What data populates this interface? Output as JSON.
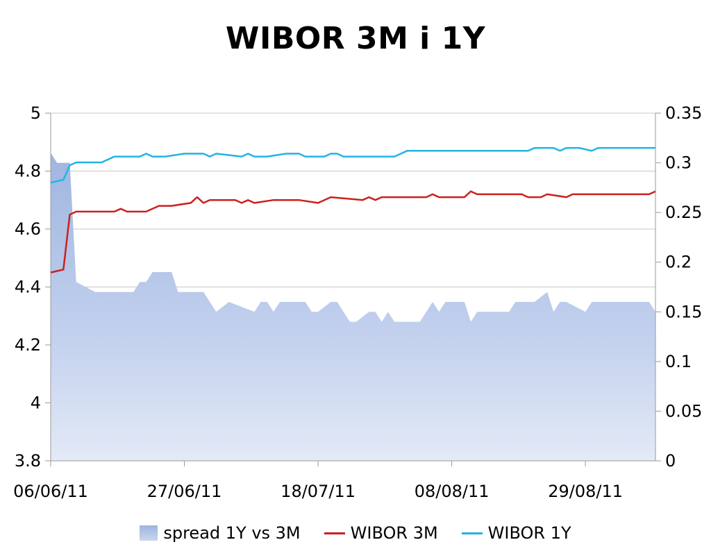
{
  "chart_data": {
    "type": "line",
    "title": "WIBOR 3M i 1Y",
    "x_ticks": [
      "06/06/11",
      "27/06/11",
      "18/07/11",
      "08/08/11",
      "29/08/11"
    ],
    "x_range": [
      "06/06/11",
      "09/09/11"
    ],
    "y_left": {
      "ylim": [
        3.8,
        5
      ],
      "ticks": [
        "3.8",
        "4",
        "4.2",
        "4.4",
        "4.6",
        "4.8",
        "5"
      ]
    },
    "y_right": {
      "ylim": [
        0,
        0.35
      ],
      "ticks": [
        "0",
        "0.05",
        "0.1",
        "0.15",
        "0.2",
        "0.25",
        "0.3",
        "0.35"
      ]
    },
    "grid": true,
    "legend_position": "bottom",
    "series": [
      {
        "name": "spread 1Y vs 3M",
        "kind": "area",
        "axis": "right",
        "color": "#b8c8e8",
        "points": [
          [
            "06/06/11",
            0.31
          ],
          [
            "07/06/11",
            0.3
          ],
          [
            "08/06/11",
            0.3
          ],
          [
            "09/06/11",
            0.3
          ],
          [
            "10/06/11",
            0.18
          ],
          [
            "13/06/11",
            0.17
          ],
          [
            "16/06/11",
            0.17
          ],
          [
            "19/06/11",
            0.17
          ],
          [
            "20/06/11",
            0.18
          ],
          [
            "21/06/11",
            0.18
          ],
          [
            "22/06/11",
            0.19
          ],
          [
            "25/06/11",
            0.19
          ],
          [
            "26/06/11",
            0.17
          ],
          [
            "30/06/11",
            0.17
          ],
          [
            "01/07/11",
            0.16
          ],
          [
            "02/07/11",
            0.15
          ],
          [
            "04/07/11",
            0.16
          ],
          [
            "06/07/11",
            0.155
          ],
          [
            "08/07/11",
            0.15
          ],
          [
            "09/07/11",
            0.16
          ],
          [
            "10/07/11",
            0.16
          ],
          [
            "11/07/11",
            0.15
          ],
          [
            "12/07/11",
            0.16
          ],
          [
            "16/07/11",
            0.16
          ],
          [
            "17/07/11",
            0.15
          ],
          [
            "18/07/11",
            0.15
          ],
          [
            "20/07/11",
            0.16
          ],
          [
            "21/07/11",
            0.16
          ],
          [
            "23/07/11",
            0.14
          ],
          [
            "24/07/11",
            0.14
          ],
          [
            "26/07/11",
            0.15
          ],
          [
            "27/07/11",
            0.15
          ],
          [
            "28/07/11",
            0.14
          ],
          [
            "29/07/11",
            0.15
          ],
          [
            "30/07/11",
            0.14
          ],
          [
            "03/08/11",
            0.14
          ],
          [
            "05/08/11",
            0.16
          ],
          [
            "06/08/11",
            0.15
          ],
          [
            "07/08/11",
            0.16
          ],
          [
            "10/08/11",
            0.16
          ],
          [
            "11/08/11",
            0.14
          ],
          [
            "12/08/11",
            0.15
          ],
          [
            "17/08/11",
            0.15
          ],
          [
            "18/08/11",
            0.16
          ],
          [
            "21/08/11",
            0.16
          ],
          [
            "22/08/11",
            0.165
          ],
          [
            "23/08/11",
            0.17
          ],
          [
            "24/08/11",
            0.15
          ],
          [
            "25/08/11",
            0.16
          ],
          [
            "26/08/11",
            0.16
          ],
          [
            "29/08/11",
            0.15
          ],
          [
            "30/08/11",
            0.16
          ],
          [
            "08/09/11",
            0.16
          ],
          [
            "09/09/11",
            0.15
          ]
        ]
      },
      {
        "name": "WIBOR 3M",
        "kind": "line",
        "axis": "left",
        "color": "#cc1f1f",
        "points": [
          [
            "06/06/11",
            4.45
          ],
          [
            "08/06/11",
            4.46
          ],
          [
            "09/06/11",
            4.65
          ],
          [
            "10/06/11",
            4.66
          ],
          [
            "16/06/11",
            4.66
          ],
          [
            "17/06/11",
            4.67
          ],
          [
            "18/06/11",
            4.66
          ],
          [
            "21/06/11",
            4.66
          ],
          [
            "23/06/11",
            4.68
          ],
          [
            "25/06/11",
            4.68
          ],
          [
            "28/06/11",
            4.69
          ],
          [
            "29/06/11",
            4.71
          ],
          [
            "30/06/11",
            4.69
          ],
          [
            "01/07/11",
            4.7
          ],
          [
            "05/07/11",
            4.7
          ],
          [
            "06/07/11",
            4.69
          ],
          [
            "07/07/11",
            4.7
          ],
          [
            "08/07/11",
            4.69
          ],
          [
            "11/07/11",
            4.7
          ],
          [
            "15/07/11",
            4.7
          ],
          [
            "18/07/11",
            4.69
          ],
          [
            "20/07/11",
            4.71
          ],
          [
            "25/07/11",
            4.7
          ],
          [
            "26/07/11",
            4.71
          ],
          [
            "27/07/11",
            4.7
          ],
          [
            "28/07/11",
            4.71
          ],
          [
            "04/08/11",
            4.71
          ],
          [
            "05/08/11",
            4.72
          ],
          [
            "06/08/11",
            4.71
          ],
          [
            "10/08/11",
            4.71
          ],
          [
            "11/08/11",
            4.73
          ],
          [
            "12/08/11",
            4.72
          ],
          [
            "19/08/11",
            4.72
          ],
          [
            "20/08/11",
            4.71
          ],
          [
            "22/08/11",
            4.71
          ],
          [
            "23/08/11",
            4.72
          ],
          [
            "26/08/11",
            4.71
          ],
          [
            "27/08/11",
            4.72
          ],
          [
            "08/09/11",
            4.72
          ],
          [
            "09/09/11",
            4.73
          ]
        ]
      },
      {
        "name": "WIBOR 1Y",
        "kind": "line",
        "axis": "left",
        "color": "#22b4e3",
        "points": [
          [
            "06/06/11",
            4.76
          ],
          [
            "08/06/11",
            4.77
          ],
          [
            "09/06/11",
            4.82
          ],
          [
            "10/06/11",
            4.83
          ],
          [
            "14/06/11",
            4.83
          ],
          [
            "16/06/11",
            4.85
          ],
          [
            "20/06/11",
            4.85
          ],
          [
            "21/06/11",
            4.86
          ],
          [
            "22/06/11",
            4.85
          ],
          [
            "24/06/11",
            4.85
          ],
          [
            "27/06/11",
            4.86
          ],
          [
            "30/06/11",
            4.86
          ],
          [
            "01/07/11",
            4.85
          ],
          [
            "02/07/11",
            4.86
          ],
          [
            "06/07/11",
            4.85
          ],
          [
            "07/07/11",
            4.86
          ],
          [
            "08/07/11",
            4.85
          ],
          [
            "10/07/11",
            4.85
          ],
          [
            "13/07/11",
            4.86
          ],
          [
            "15/07/11",
            4.86
          ],
          [
            "16/07/11",
            4.85
          ],
          [
            "19/07/11",
            4.85
          ],
          [
            "20/07/11",
            4.86
          ],
          [
            "21/07/11",
            4.86
          ],
          [
            "22/07/11",
            4.85
          ],
          [
            "30/07/11",
            4.85
          ],
          [
            "01/08/11",
            4.87
          ],
          [
            "20/08/11",
            4.87
          ],
          [
            "21/08/11",
            4.88
          ],
          [
            "24/08/11",
            4.88
          ],
          [
            "25/08/11",
            4.87
          ],
          [
            "26/08/11",
            4.88
          ],
          [
            "28/08/11",
            4.88
          ],
          [
            "30/08/11",
            4.87
          ],
          [
            "31/08/11",
            4.88
          ],
          [
            "09/09/11",
            4.88
          ]
        ]
      }
    ]
  }
}
